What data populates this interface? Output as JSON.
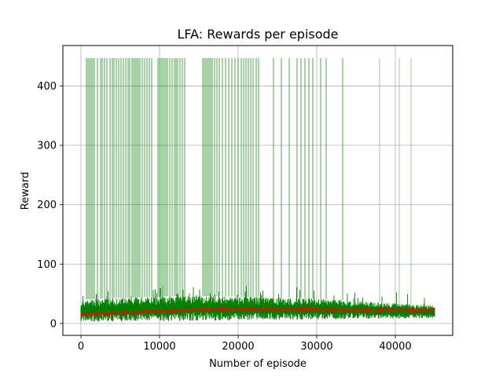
{
  "chart_data": {
    "type": "line",
    "title": "LFA: Rewards per episode",
    "xlabel": "Number of episode",
    "ylabel": "Reward",
    "xlim": [
      -2300,
      47300
    ],
    "ylim": [
      -20,
      468
    ],
    "x_ticks": [
      0,
      10000,
      20000,
      30000,
      40000
    ],
    "x_tick_labels": [
      "0",
      "10000",
      "20000",
      "30000",
      "40000"
    ],
    "y_ticks": [
      0,
      100,
      200,
      300,
      400
    ],
    "y_tick_labels": [
      "0",
      "100",
      "200",
      "300",
      "400"
    ],
    "grid": true,
    "legend": "none",
    "episodes_range": [
      0,
      45000
    ],
    "series": [
      {
        "color": "#008000",
        "band": {
          "x": [
            0,
            2500,
            5000,
            7500,
            10000,
            12500,
            15000,
            17500,
            20000,
            22500,
            25000,
            27500,
            30000,
            32500,
            35000,
            37500,
            40000,
            42500,
            45000
          ],
          "low": [
            3,
            3,
            4,
            4,
            4,
            4,
            5,
            5,
            5,
            6,
            6,
            6,
            7,
            7,
            8,
            8,
            8,
            9,
            9
          ],
          "high": [
            40,
            42,
            43,
            44,
            45,
            46,
            46,
            46,
            45,
            45,
            44,
            43,
            42,
            40,
            38,
            36,
            34,
            32,
            30
          ]
        },
        "spikes_value": 447,
        "spikes_x": [
          700,
          900,
          1100,
          1300,
          1500,
          1700,
          2100,
          2500,
          2700,
          3000,
          3300,
          3700,
          4000,
          4200,
          4500,
          4800,
          5100,
          5400,
          5700,
          6000,
          6200,
          6500,
          6700,
          6900,
          7100,
          7300,
          7500,
          7800,
          8100,
          8400,
          8700,
          9000,
          9800,
          10000,
          10200,
          10400,
          10600,
          10800,
          11000,
          11300,
          11600,
          11900,
          12100,
          12300,
          12600,
          12900,
          13200,
          15500,
          15700,
          15900,
          16100,
          16300,
          16500,
          16700,
          17000,
          17300,
          17600,
          18000,
          18400,
          18800,
          19200,
          19600,
          20000,
          20400,
          20700,
          21000,
          21300,
          21600,
          21900,
          22300,
          22600,
          24500,
          25500,
          26500,
          27500,
          28000,
          28500,
          29000,
          29500,
          30500,
          31200,
          33300,
          38000,
          40500,
          42000
        ]
      },
      {
        "color": "#ff0000",
        "x": [
          0,
          2500,
          5000,
          7500,
          10000,
          12500,
          15000,
          17500,
          20000,
          22500,
          25000,
          27500,
          30000,
          32500,
          35000,
          37500,
          40000,
          42500,
          45000
        ],
        "values": [
          14,
          15,
          17,
          19,
          20,
          21,
          22,
          23,
          23,
          23,
          23,
          23,
          23,
          22,
          22,
          22,
          22,
          22,
          22
        ]
      }
    ]
  }
}
